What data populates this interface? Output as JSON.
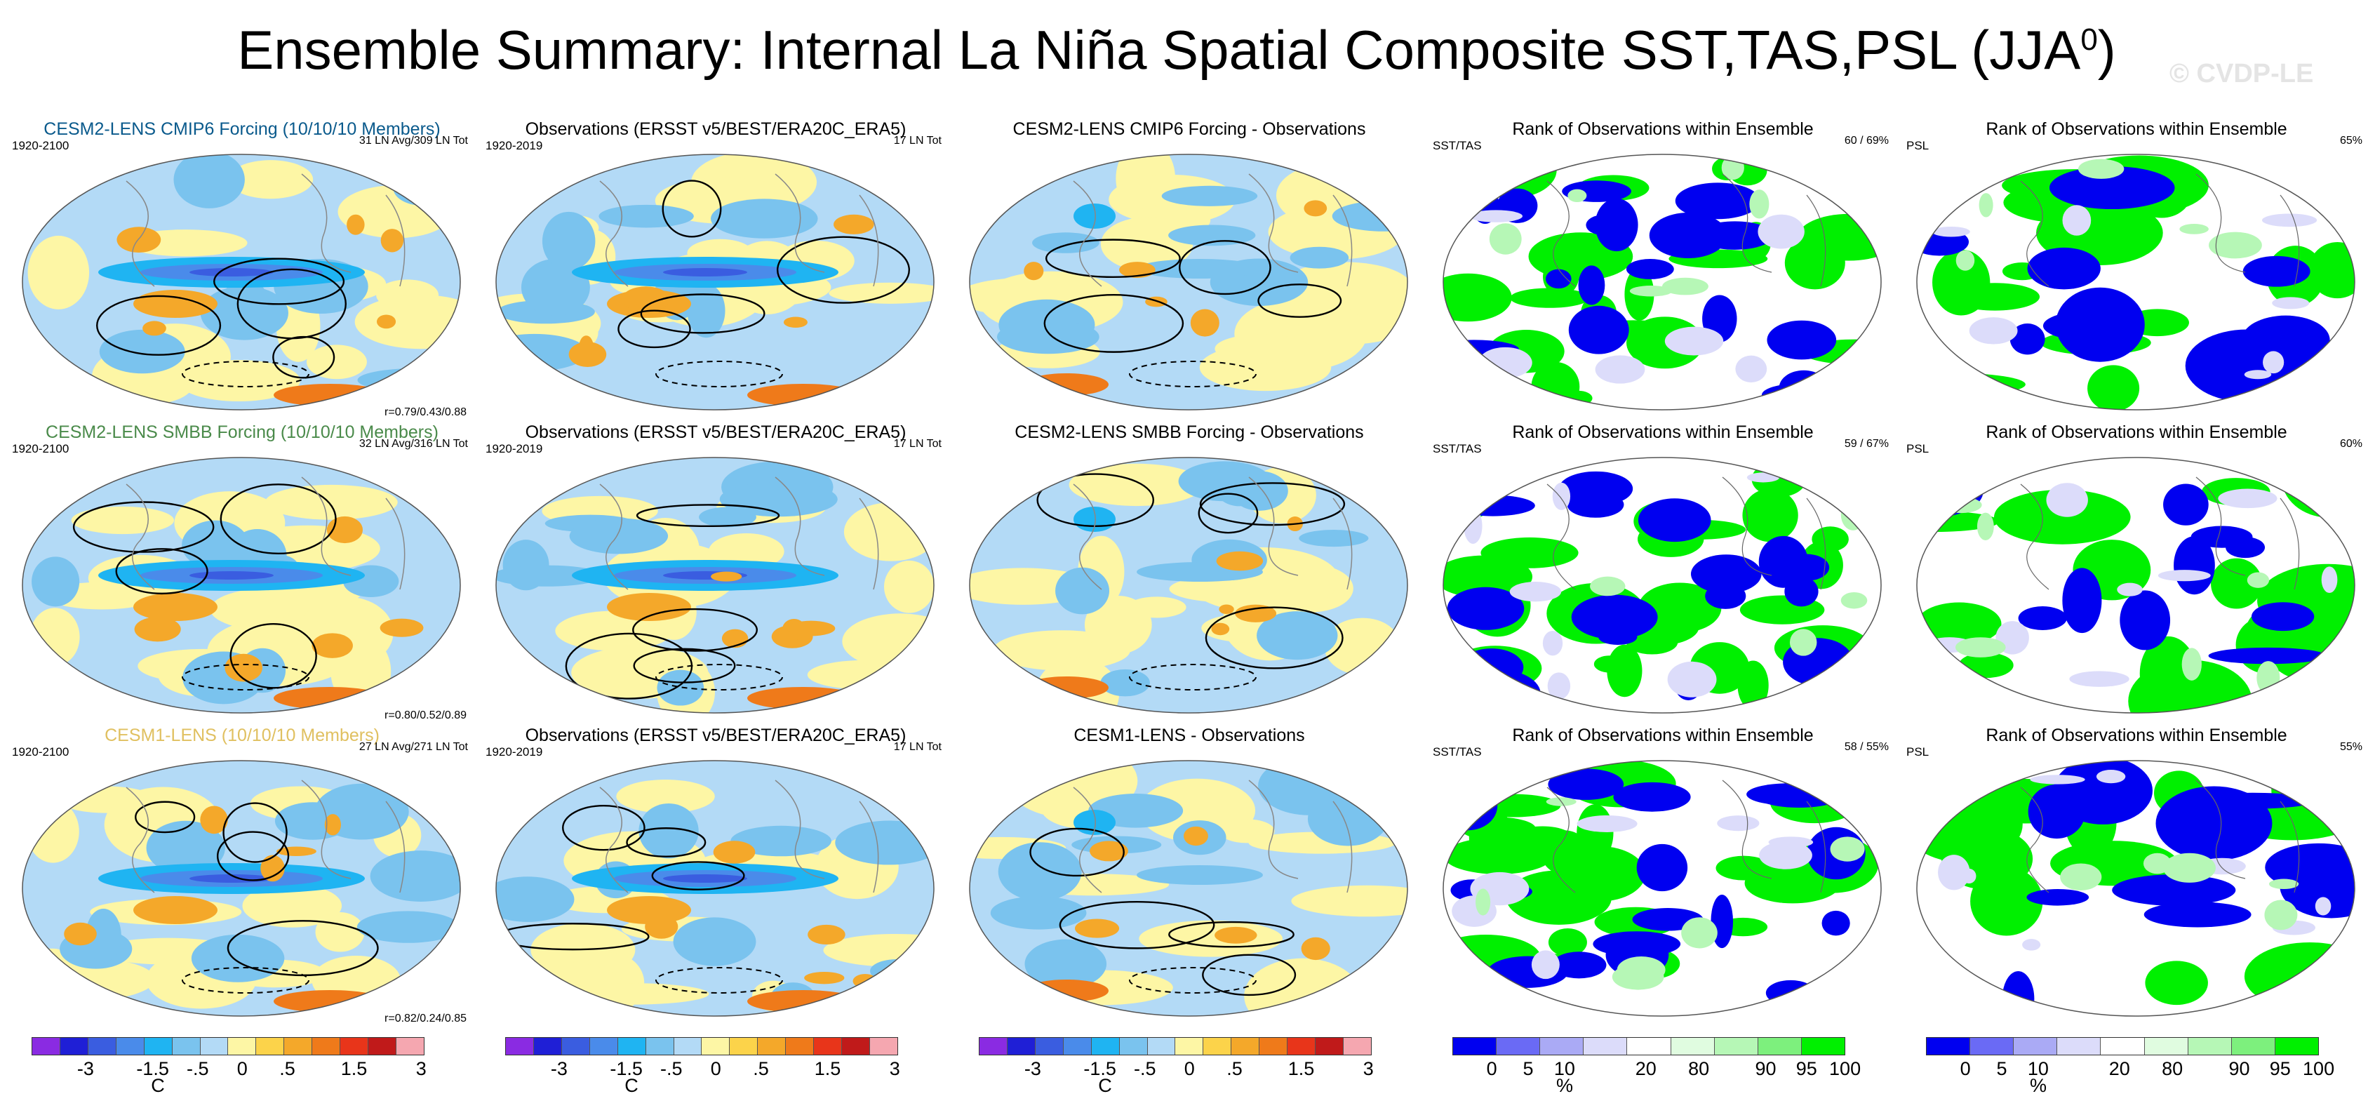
{
  "title": "Ensemble Summary: Internal La Niña Spatial Composite SST,TAS,PSL (JJA",
  "title_sup": "0",
  "title_end": ")",
  "watermark": "© CVDP-LE",
  "colors": {
    "temp_palette": [
      "#8a2be2",
      "#1f1fd6",
      "#3a5de0",
      "#4a8bea",
      "#1fb4f2",
      "#7ac3ee",
      "#b3daf6",
      "#fdf6a5",
      "#fcd34a",
      "#f4a82a",
      "#ef7a1a",
      "#e8351a",
      "#c01a1a",
      "#f5a7b0"
    ],
    "rank_palette": [
      "#0000f0",
      "#6a6af5",
      "#aaaaf5",
      "#dcdcfa",
      "#ffffff",
      "#e0fce0",
      "#b6f7b6",
      "#7df07d",
      "#00f000"
    ],
    "rows": [
      "#0a5a8c",
      "#4a8a4a",
      "#e0c060"
    ]
  },
  "rows": [
    {
      "ens_title": "CESM2-LENS CMIP6 Forcing (10/10/10 Members)",
      "ens_period": "1920-2100",
      "ens_count": "31 LN Avg/309 LN Tot",
      "ens_corr": "r=0.79/0.43/0.88",
      "obs_title": "Observations (ERSST v5/BEST/ERA20C_ERA5)",
      "obs_period": "1920-2019",
      "obs_count": "17 LN Tot",
      "diff_title": "CESM2-LENS CMIP6 Forcing - Observations",
      "rank_title": "Rank of Observations within Ensemble",
      "rank1_label": "SST/TAS",
      "rank1_value": "60 /  69%",
      "rank2_title": "Rank of Observations within Ensemble",
      "rank2_label": "PSL",
      "rank2_value": "65%"
    },
    {
      "ens_title": "CESM2-LENS SMBB Forcing (10/10/10 Members)",
      "ens_period": "1920-2100",
      "ens_count": "32 LN Avg/316 LN Tot",
      "ens_corr": "r=0.80/0.52/0.89",
      "obs_title": "Observations (ERSST v5/BEST/ERA20C_ERA5)",
      "obs_period": "1920-2019",
      "obs_count": "17 LN Tot",
      "diff_title": "CESM2-LENS SMBB Forcing - Observations",
      "rank_title": "Rank of Observations within Ensemble",
      "rank1_label": "SST/TAS",
      "rank1_value": "59 /  67%",
      "rank2_title": "Rank of Observations within Ensemble",
      "rank2_label": "PSL",
      "rank2_value": "60%"
    },
    {
      "ens_title": "CESM1-LENS (10/10/10 Members)",
      "ens_period": "1920-2100",
      "ens_count": "27 LN Avg/271 LN Tot",
      "ens_corr": "r=0.82/0.24/0.85",
      "obs_title": "Observations (ERSST v5/BEST/ERA20C_ERA5)",
      "obs_period": "1920-2019",
      "obs_count": "17 LN Tot",
      "diff_title": "CESM1-LENS - Observations",
      "rank_title": "Rank of Observations within Ensemble",
      "rank1_label": "SST/TAS",
      "rank1_value": "58 /  55%",
      "rank2_title": "Rank of Observations within Ensemble",
      "rank2_label": "PSL",
      "rank2_value": "55%"
    }
  ],
  "colorbars": {
    "temp": {
      "ticks": [
        "-3",
        "-1.5",
        "-.5",
        "0",
        ".5",
        "1.5",
        "3"
      ],
      "unit": "C"
    },
    "rank": {
      "ticks": [
        "0",
        "5",
        "10",
        "20",
        "80",
        "90",
        "95",
        "100"
      ],
      "unit": "%"
    }
  },
  "chart_data": {
    "type": "heatmap",
    "title": "Ensemble Summary: Internal La Niña Spatial Composite SST,TAS,PSL (JJA0)",
    "projection": "Robinson (global maps)",
    "temp_levels_C": [
      -4,
      -3,
      -2,
      -1.5,
      -1,
      -0.5,
      -0.25,
      0,
      0.25,
      0.5,
      1,
      1.5,
      2,
      3,
      4
    ],
    "rank_levels_pct": [
      0,
      5,
      10,
      20,
      80,
      90,
      95,
      100
    ],
    "panels_per_row": [
      "Ensemble mean composite",
      "Observations composite",
      "Ensemble - Observations",
      "Rank SST/TAS",
      "Rank PSL"
    ],
    "rank_values_pct": [
      {
        "row": "CESM2-LENS CMIP6 Forcing",
        "sst_tas": [
          60,
          69
        ],
        "psl": 65
      },
      {
        "row": "CESM2-LENS SMBB Forcing",
        "sst_tas": [
          59,
          67
        ],
        "psl": 60
      },
      {
        "row": "CESM1-LENS",
        "sst_tas": [
          58,
          55
        ],
        "psl": 55
      }
    ],
    "pattern_correlations": [
      {
        "row": "CESM2-LENS CMIP6 Forcing",
        "r": [
          0.79,
          0.43,
          0.88
        ]
      },
      {
        "row": "CESM2-LENS SMBB Forcing",
        "r": [
          0.8,
          0.52,
          0.89
        ]
      },
      {
        "row": "CESM1-LENS",
        "r": [
          0.82,
          0.24,
          0.85
        ]
      }
    ]
  }
}
